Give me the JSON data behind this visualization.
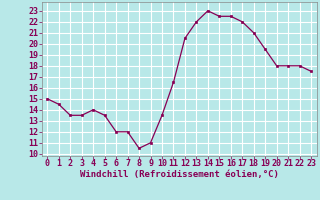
{
  "x": [
    0,
    1,
    2,
    3,
    4,
    5,
    6,
    7,
    8,
    9,
    10,
    11,
    12,
    13,
    14,
    15,
    16,
    17,
    18,
    19,
    20,
    21,
    22,
    23
  ],
  "y": [
    15.0,
    14.5,
    13.5,
    13.5,
    14.0,
    13.5,
    12.0,
    12.0,
    10.5,
    11.0,
    13.5,
    16.5,
    20.5,
    22.0,
    23.0,
    22.5,
    22.5,
    22.0,
    21.0,
    19.5,
    18.0,
    18.0,
    18.0,
    17.5
  ],
  "line_color": "#880055",
  "marker": "s",
  "marker_size": 2.0,
  "linewidth": 0.9,
  "xlabel": "Windchill (Refroidissement éolien,°C)",
  "xlabel_fontsize": 6.5,
  "ylabel_ticks": [
    10,
    11,
    12,
    13,
    14,
    15,
    16,
    17,
    18,
    19,
    20,
    21,
    22,
    23
  ],
  "xlim": [
    -0.5,
    23.5
  ],
  "ylim": [
    9.8,
    23.8
  ],
  "bg_color": "#b8e8e8",
  "grid_color": "#ffffff",
  "tick_fontsize": 6.0,
  "tick_color": "#880055",
  "label_color": "#880055"
}
